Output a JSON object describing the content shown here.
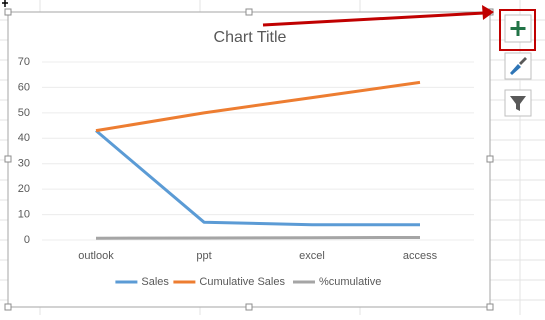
{
  "chart_data": {
    "type": "line",
    "title": "Chart Title",
    "categories": [
      "outlook",
      "ppt",
      "excel",
      "access"
    ],
    "series": [
      {
        "name": "Sales",
        "color": "#5b9bd5",
        "values": [
          43,
          7,
          6,
          6
        ]
      },
      {
        "name": "Cumulative Sales",
        "color": "#ed7d31",
        "values": [
          43,
          50,
          56,
          62
        ]
      },
      {
        "name": "%cumulative",
        "color": "#a5a5a5",
        "values": [
          0.69,
          0.81,
          0.9,
          1
        ]
      }
    ],
    "ylim": [
      0,
      70
    ],
    "yticks": [
      0,
      10,
      20,
      30,
      40,
      50,
      60,
      70
    ],
    "grid": true,
    "legend": "bottom"
  }
}
